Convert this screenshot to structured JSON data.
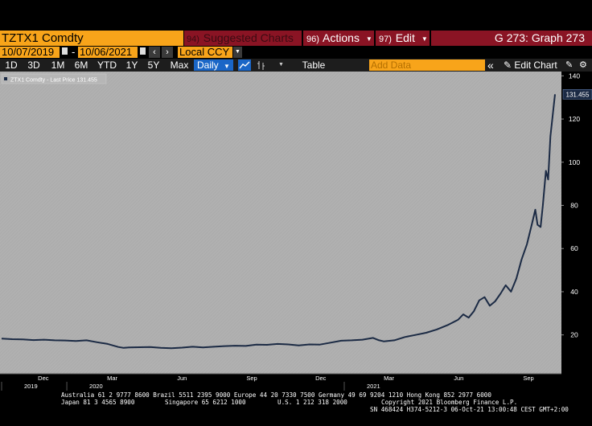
{
  "header": {
    "ticker": "TZTX1 Comdty",
    "suggested": {
      "num": "94)",
      "label": "Suggested Charts"
    },
    "actions": {
      "num": "96)",
      "label": "Actions"
    },
    "edit": {
      "num": "97)",
      "label": "Edit"
    },
    "graph_title": "G 273: Graph 273"
  },
  "date_range": {
    "start": "10/07/2019",
    "separator": "-",
    "end": "10/06/2021",
    "currency": "Local CCY"
  },
  "toolbar": {
    "periods": [
      "1D",
      "3D",
      "1M",
      "6M",
      "YTD",
      "1Y",
      "5Y",
      "Max"
    ],
    "frequency": "Daily",
    "table_label": "Table",
    "add_data_placeholder": "Add Data",
    "edit_chart_label": "Edit Chart"
  },
  "legend": {
    "series_label": "ZTX1 Comdty - Last Price 131.455"
  },
  "chart_data": {
    "type": "line",
    "series": [
      {
        "name": "ZTX1 Comdty - Last Price",
        "last_value": 131.455,
        "last_label": "131.455",
        "points": [
          [
            "2019-10-07",
            18.3
          ],
          [
            "2019-10-21",
            18.0
          ],
          [
            "2019-11-04",
            17.9
          ],
          [
            "2019-11-18",
            17.6
          ],
          [
            "2019-12-02",
            17.8
          ],
          [
            "2019-12-16",
            17.5
          ],
          [
            "2019-12-30",
            17.4
          ],
          [
            "2020-01-13",
            17.2
          ],
          [
            "2020-01-27",
            17.5
          ],
          [
            "2020-02-10",
            16.6
          ],
          [
            "2020-02-24",
            15.8
          ],
          [
            "2020-03-09",
            14.4
          ],
          [
            "2020-03-16",
            14.0
          ],
          [
            "2020-03-23",
            14.2
          ],
          [
            "2020-04-06",
            14.3
          ],
          [
            "2020-04-20",
            14.4
          ],
          [
            "2020-05-04",
            14.0
          ],
          [
            "2020-05-18",
            13.8
          ],
          [
            "2020-06-01",
            14.1
          ],
          [
            "2020-06-15",
            14.5
          ],
          [
            "2020-06-29",
            14.2
          ],
          [
            "2020-07-13",
            14.5
          ],
          [
            "2020-07-27",
            14.8
          ],
          [
            "2020-08-10",
            15.0
          ],
          [
            "2020-08-24",
            14.9
          ],
          [
            "2020-09-07",
            15.5
          ],
          [
            "2020-09-21",
            15.4
          ],
          [
            "2020-10-05",
            15.8
          ],
          [
            "2020-10-19",
            15.6
          ],
          [
            "2020-11-02",
            15.1
          ],
          [
            "2020-11-16",
            15.6
          ],
          [
            "2020-11-30",
            15.5
          ],
          [
            "2020-12-14",
            16.4
          ],
          [
            "2020-12-28",
            17.3
          ],
          [
            "2021-01-11",
            17.5
          ],
          [
            "2021-01-25",
            17.8
          ],
          [
            "2021-02-08",
            18.6
          ],
          [
            "2021-02-15",
            17.6
          ],
          [
            "2021-02-22",
            17.0
          ],
          [
            "2021-03-08",
            17.5
          ],
          [
            "2021-03-22",
            19.0
          ],
          [
            "2021-04-05",
            20.0
          ],
          [
            "2021-04-19",
            21.0
          ],
          [
            "2021-05-03",
            22.5
          ],
          [
            "2021-05-17",
            24.5
          ],
          [
            "2021-05-31",
            27.0
          ],
          [
            "2021-06-07",
            29.5
          ],
          [
            "2021-06-14",
            28.0
          ],
          [
            "2021-06-21",
            31.0
          ],
          [
            "2021-06-28",
            36.0
          ],
          [
            "2021-07-05",
            37.5
          ],
          [
            "2021-07-12",
            33.5
          ],
          [
            "2021-07-19",
            35.5
          ],
          [
            "2021-07-26",
            39.0
          ],
          [
            "2021-08-02",
            43.0
          ],
          [
            "2021-08-09",
            40.0
          ],
          [
            "2021-08-16",
            46.0
          ],
          [
            "2021-08-23",
            55.0
          ],
          [
            "2021-08-30",
            62.0
          ],
          [
            "2021-09-06",
            72.0
          ],
          [
            "2021-09-10",
            78.0
          ],
          [
            "2021-09-13",
            71.0
          ],
          [
            "2021-09-17",
            70.0
          ],
          [
            "2021-09-20",
            80.0
          ],
          [
            "2021-09-24",
            96.0
          ],
          [
            "2021-09-27",
            92.0
          ],
          [
            "2021-09-30",
            112.0
          ],
          [
            "2021-10-04",
            125.0
          ],
          [
            "2021-10-06",
            131.455
          ]
        ]
      }
    ],
    "y_axis": {
      "ticks": [
        20,
        40,
        60,
        80,
        100,
        120,
        140
      ],
      "ylim": [
        2,
        142
      ],
      "position": "right"
    },
    "x_axis": {
      "range": [
        "2019-10-07",
        "2021-10-06"
      ],
      "ticks": [
        {
          "date": "2019-12-01",
          "label": "Dec"
        },
        {
          "date": "2020-03-01",
          "label": "Mar"
        },
        {
          "date": "2020-06-01",
          "label": "Jun"
        },
        {
          "date": "2020-09-01",
          "label": "Sep"
        },
        {
          "date": "2020-12-01",
          "label": "Dec"
        },
        {
          "date": "2021-03-01",
          "label": "Mar"
        },
        {
          "date": "2021-06-01",
          "label": "Jun"
        },
        {
          "date": "2021-09-01",
          "label": "Sep"
        }
      ],
      "year_labels": [
        {
          "date": "2019-10-07",
          "label": "2019"
        },
        {
          "date": "2020-01-01",
          "label": "2020"
        },
        {
          "date": "2021-01-01",
          "label": "2021"
        }
      ]
    },
    "grid": false,
    "legend_position": "top-left",
    "colors": {
      "line": "#1b2a44",
      "plot_bg": "#adadad",
      "axis_bg": "#000000",
      "last_label_bg": "#1b2a44"
    }
  },
  "footer": {
    "line1": "Australia 61 2 9777 8600 Brazil 5511 2395 9000 Europe 44 20 7330 7500 Germany 49 69 9204 1210 Hong Kong 852 2977 6000",
    "line2a": "Japan 81 3 4565 8900",
    "line2b": "Singapore 65 6212 1000",
    "line2c": "U.S. 1 212 318 2000",
    "line2d": "Copyright 2021 Bloomberg Finance L.P.",
    "line3": "SN 468424 H374-5212-3 06-Oct-21 13:00:48 CEST GMT+2:00"
  }
}
